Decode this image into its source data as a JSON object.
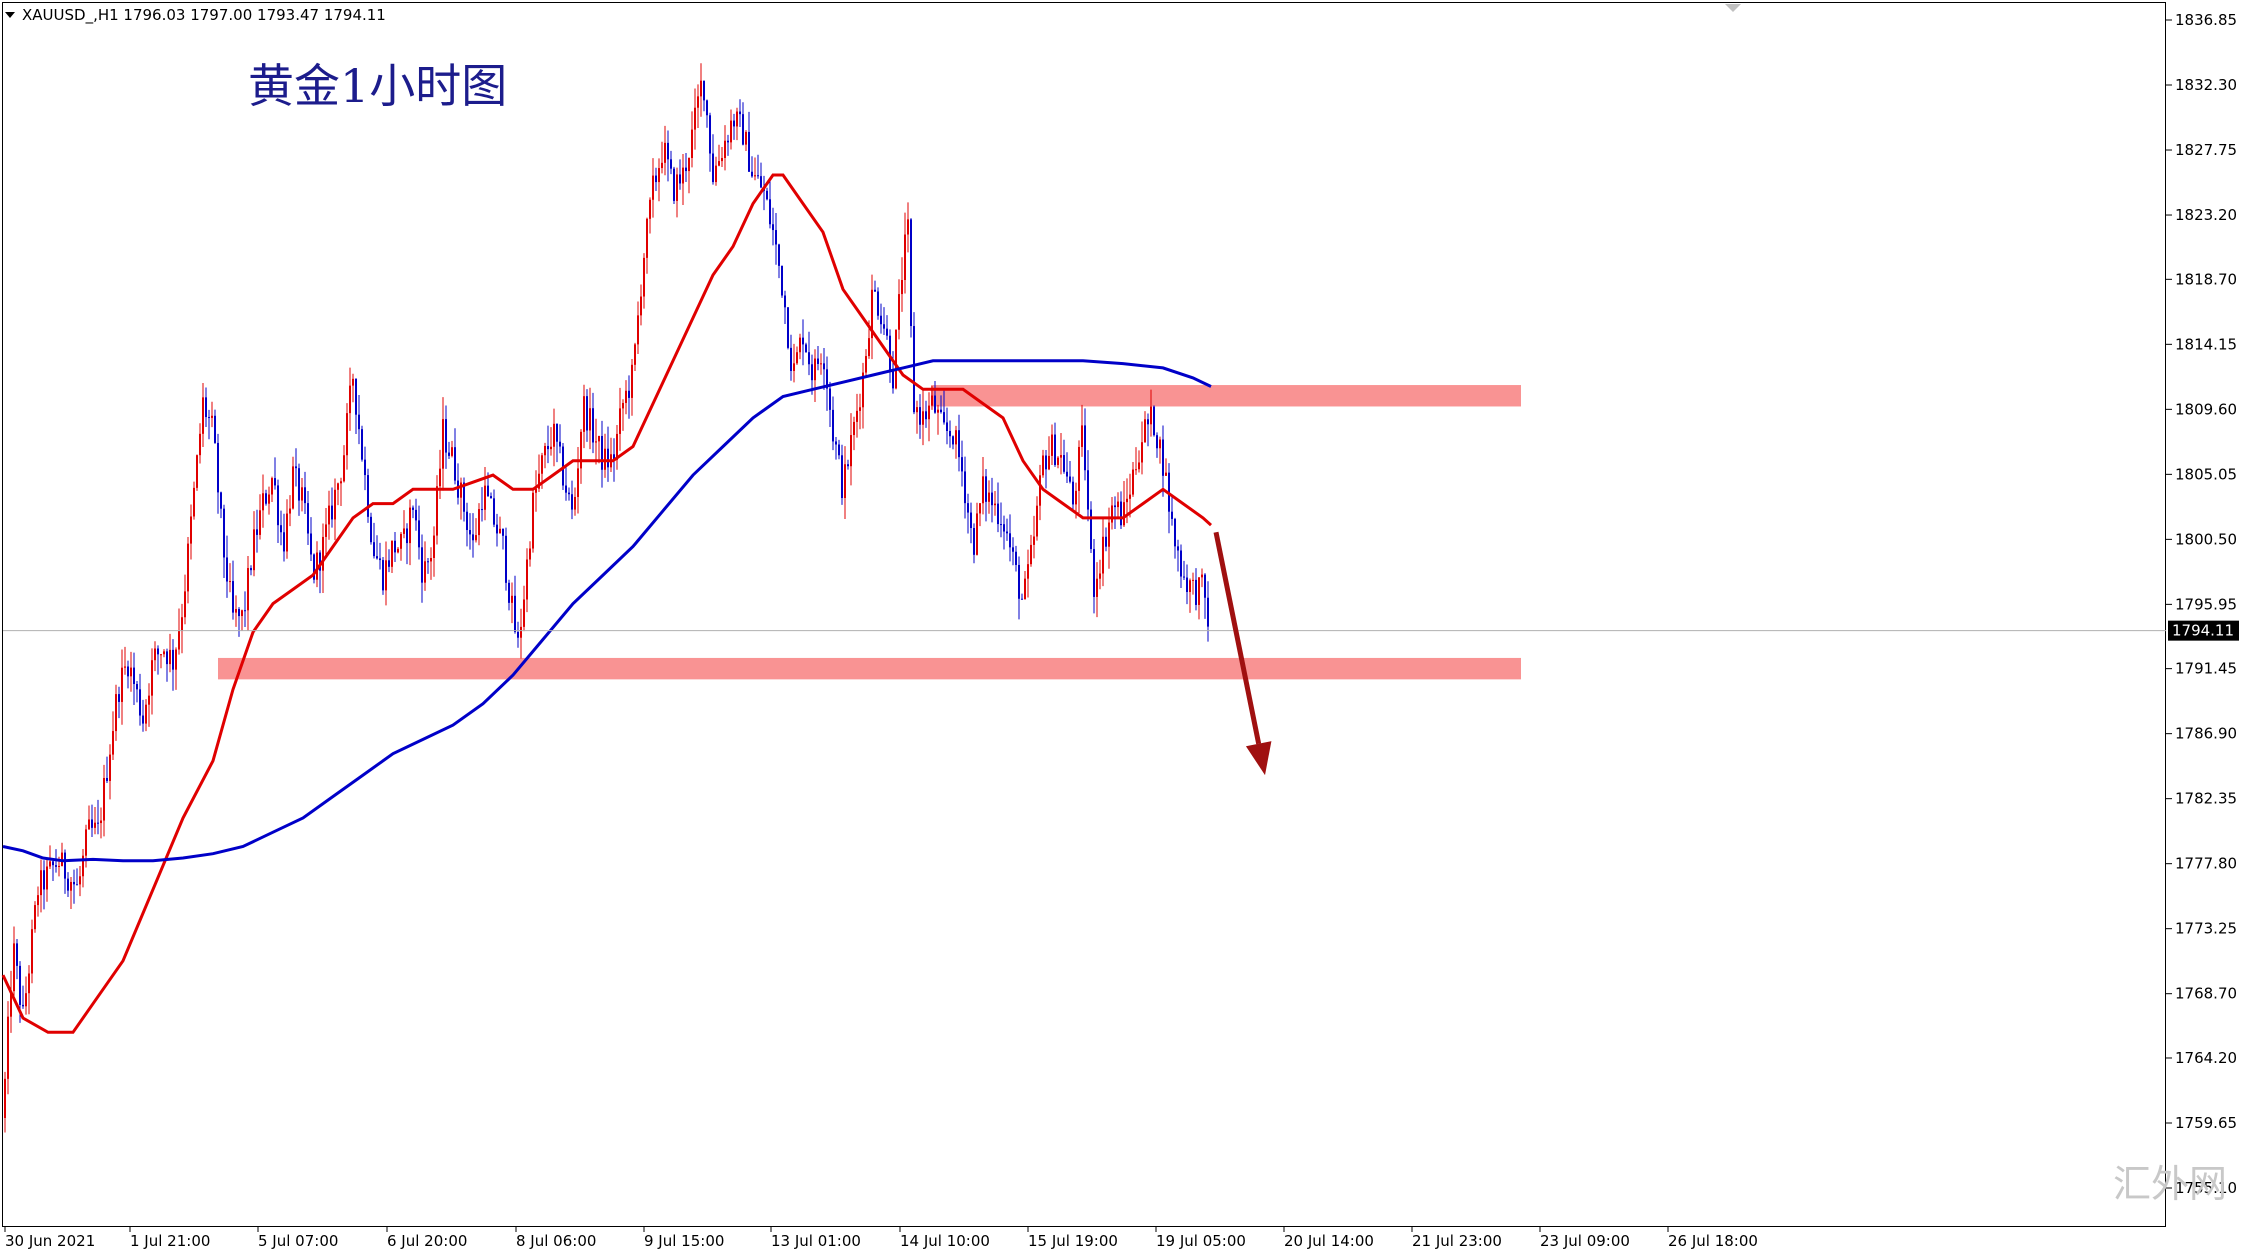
{
  "symbol_info": "XAUUSD_,H1  1796.03 1797.00 1793.47 1794.11",
  "watermark": "汇外网",
  "chart_data": {
    "type": "candlestick",
    "title": "黄金1小时图",
    "symbol": "XAUUSD_",
    "timeframe": "H1",
    "ohlc": {
      "open": 1796.03,
      "high": 1797.0,
      "low": 1793.47,
      "close": 1794.11
    },
    "current_price_label": "1794.11",
    "ylim": [
      1751.0,
      1838.5
    ],
    "y_ticks": [
      "1836.85",
      "1832.30",
      "1827.75",
      "1823.20",
      "1818.70",
      "1814.15",
      "1809.60",
      "1805.05",
      "1800.50",
      "1795.95",
      "1791.45",
      "1786.90",
      "1782.35",
      "1777.80",
      "1773.25",
      "1768.70",
      "1764.20",
      "1759.65",
      "1755.10"
    ],
    "x_ticks": [
      "30 Jun 2021",
      "1 Jul 21:00",
      "5 Jul 07:00",
      "6 Jul 20:00",
      "8 Jul 06:00",
      "9 Jul 15:00",
      "13 Jul 01:00",
      "14 Jul 10:00",
      "15 Jul 19:00",
      "19 Jul 05:00",
      "20 Jul 14:00",
      "21 Jul 23:00",
      "23 Jul 09:00",
      "26 Jul 18:00"
    ],
    "price_path": [
      [
        0,
        1760
      ],
      [
        10,
        1772
      ],
      [
        20,
        1767
      ],
      [
        35,
        1776
      ],
      [
        55,
        1778
      ],
      [
        75,
        1776
      ],
      [
        85,
        1780
      ],
      [
        95,
        1780
      ],
      [
        105,
        1785
      ],
      [
        115,
        1790
      ],
      [
        125,
        1792
      ],
      [
        140,
        1788
      ],
      [
        150,
        1792
      ],
      [
        160,
        1793
      ],
      [
        170,
        1792
      ],
      [
        180,
        1796
      ],
      [
        190,
        1803
      ],
      [
        200,
        1810
      ],
      [
        210,
        1808
      ],
      [
        220,
        1800
      ],
      [
        230,
        1795
      ],
      [
        240,
        1795
      ],
      [
        250,
        1800
      ],
      [
        260,
        1803
      ],
      [
        270,
        1805
      ],
      [
        280,
        1800
      ],
      [
        290,
        1805
      ],
      [
        300,
        1803
      ],
      [
        310,
        1798
      ],
      [
        320,
        1800
      ],
      [
        330,
        1803
      ],
      [
        340,
        1806
      ],
      [
        350,
        1812
      ],
      [
        360,
        1806
      ],
      [
        370,
        1800
      ],
      [
        380,
        1798
      ],
      [
        390,
        1800
      ],
      [
        400,
        1800
      ],
      [
        410,
        1803
      ],
      [
        420,
        1798
      ],
      [
        430,
        1800
      ],
      [
        440,
        1808
      ],
      [
        450,
        1806
      ],
      [
        460,
        1803
      ],
      [
        470,
        1800
      ],
      [
        480,
        1804
      ],
      [
        490,
        1802
      ],
      [
        500,
        1800
      ],
      [
        510,
        1795
      ],
      [
        515,
        1793
      ],
      [
        520,
        1796
      ],
      [
        530,
        1803
      ],
      [
        540,
        1806
      ],
      [
        550,
        1808
      ],
      [
        560,
        1805
      ],
      [
        570,
        1802
      ],
      [
        580,
        1810
      ],
      [
        590,
        1808
      ],
      [
        600,
        1806
      ],
      [
        610,
        1806
      ],
      [
        620,
        1810
      ],
      [
        630,
        1812
      ],
      [
        640,
        1820
      ],
      [
        650,
        1825
      ],
      [
        660,
        1828
      ],
      [
        670,
        1825
      ],
      [
        680,
        1826
      ],
      [
        690,
        1829
      ],
      [
        700,
        1833
      ],
      [
        710,
        1826
      ],
      [
        720,
        1828
      ],
      [
        730,
        1830
      ],
      [
        740,
        1829
      ],
      [
        750,
        1826
      ],
      [
        760,
        1825
      ],
      [
        770,
        1822
      ],
      [
        780,
        1818
      ],
      [
        790,
        1812
      ],
      [
        800,
        1815
      ],
      [
        810,
        1812
      ],
      [
        820,
        1814
      ],
      [
        830,
        1808
      ],
      [
        840,
        1804
      ],
      [
        850,
        1808
      ],
      [
        860,
        1812
      ],
      [
        870,
        1818
      ],
      [
        880,
        1816
      ],
      [
        890,
        1812
      ],
      [
        900,
        1820
      ],
      [
        905,
        1822
      ],
      [
        910,
        1810
      ],
      [
        920,
        1809
      ],
      [
        930,
        1810
      ],
      [
        940,
        1808
      ],
      [
        950,
        1808
      ],
      [
        960,
        1805
      ],
      [
        970,
        1800
      ],
      [
        980,
        1804
      ],
      [
        990,
        1803
      ],
      [
        1000,
        1802
      ],
      [
        1010,
        1799
      ],
      [
        1020,
        1796
      ],
      [
        1030,
        1800
      ],
      [
        1040,
        1806
      ],
      [
        1050,
        1807
      ],
      [
        1060,
        1806
      ],
      [
        1070,
        1803
      ],
      [
        1080,
        1808
      ],
      [
        1090,
        1797
      ],
      [
        1100,
        1800
      ],
      [
        1110,
        1803
      ],
      [
        1120,
        1802
      ],
      [
        1130,
        1805
      ],
      [
        1140,
        1808
      ],
      [
        1150,
        1809
      ],
      [
        1160,
        1806
      ],
      [
        1170,
        1801
      ],
      [
        1180,
        1798
      ],
      [
        1190,
        1797
      ],
      [
        1200,
        1797
      ],
      [
        1207,
        1794.11
      ]
    ],
    "series": [
      {
        "color": "#e00000",
        "values": [
          [
            0,
            1770
          ],
          [
            20,
            1767
          ],
          [
            45,
            1766
          ],
          [
            70,
            1766
          ],
          [
            90,
            1768
          ],
          [
            120,
            1771
          ],
          [
            150,
            1776
          ],
          [
            180,
            1781
          ],
          [
            210,
            1785
          ],
          [
            230,
            1790
          ],
          [
            250,
            1794
          ],
          [
            270,
            1796
          ],
          [
            290,
            1797
          ],
          [
            310,
            1798
          ],
          [
            330,
            1800
          ],
          [
            350,
            1802
          ],
          [
            370,
            1803
          ],
          [
            390,
            1803
          ],
          [
            410,
            1804
          ],
          [
            430,
            1804
          ],
          [
            450,
            1804
          ],
          [
            470,
            1804.5
          ],
          [
            490,
            1805
          ],
          [
            510,
            1804
          ],
          [
            530,
            1804
          ],
          [
            550,
            1805
          ],
          [
            570,
            1806
          ],
          [
            590,
            1806
          ],
          [
            610,
            1806
          ],
          [
            630,
            1807
          ],
          [
            650,
            1810
          ],
          [
            670,
            1813
          ],
          [
            690,
            1816
          ],
          [
            710,
            1819
          ],
          [
            730,
            1821
          ],
          [
            750,
            1824
          ],
          [
            770,
            1826
          ],
          [
            780,
            1826
          ],
          [
            800,
            1824
          ],
          [
            820,
            1822
          ],
          [
            840,
            1818
          ],
          [
            860,
            1816
          ],
          [
            880,
            1814
          ],
          [
            900,
            1812
          ],
          [
            920,
            1811
          ],
          [
            940,
            1811
          ],
          [
            960,
            1811
          ],
          [
            980,
            1810
          ],
          [
            1000,
            1809
          ],
          [
            1020,
            1806
          ],
          [
            1040,
            1804
          ],
          [
            1060,
            1803
          ],
          [
            1080,
            1802
          ],
          [
            1100,
            1802
          ],
          [
            1120,
            1802
          ],
          [
            1140,
            1803
          ],
          [
            1160,
            1804
          ],
          [
            1180,
            1803
          ],
          [
            1200,
            1802
          ],
          [
            1208,
            1801.5
          ]
        ]
      },
      {
        "color": "#0000c8",
        "values": [
          [
            0,
            1779
          ],
          [
            20,
            1778.7
          ],
          [
            40,
            1778.2
          ],
          [
            60,
            1778
          ],
          [
            90,
            1778.1
          ],
          [
            120,
            1778
          ],
          [
            150,
            1778
          ],
          [
            180,
            1778.2
          ],
          [
            210,
            1778.5
          ],
          [
            240,
            1779
          ],
          [
            270,
            1780
          ],
          [
            300,
            1781
          ],
          [
            330,
            1782.5
          ],
          [
            360,
            1784
          ],
          [
            390,
            1785.5
          ],
          [
            420,
            1786.5
          ],
          [
            450,
            1787.5
          ],
          [
            480,
            1789
          ],
          [
            510,
            1791
          ],
          [
            540,
            1793.5
          ],
          [
            570,
            1796
          ],
          [
            600,
            1798
          ],
          [
            630,
            1800
          ],
          [
            660,
            1802.5
          ],
          [
            690,
            1805
          ],
          [
            720,
            1807
          ],
          [
            750,
            1809
          ],
          [
            780,
            1810.5
          ],
          [
            810,
            1811
          ],
          [
            840,
            1811.5
          ],
          [
            870,
            1812
          ],
          [
            900,
            1812.5
          ],
          [
            930,
            1813
          ],
          [
            960,
            1813
          ],
          [
            1000,
            1813
          ],
          [
            1040,
            1813
          ],
          [
            1080,
            1813
          ],
          [
            1120,
            1812.8
          ],
          [
            1160,
            1812.5
          ],
          [
            1190,
            1811.8
          ],
          [
            1208,
            1811.2
          ]
        ]
      }
    ],
    "zones": [
      {
        "x0": 928,
        "x1": 1518,
        "y0": 1809.8,
        "y1": 1811.3
      },
      {
        "x0": 215,
        "x1": 1518,
        "y0": 1790.7,
        "y1": 1792.2
      }
    ],
    "arrow": {
      "from": [
        1213,
        1801
      ],
      "to": [
        1262,
        1784
      ],
      "color": "#a01010"
    },
    "legend": "none",
    "grid": false
  }
}
